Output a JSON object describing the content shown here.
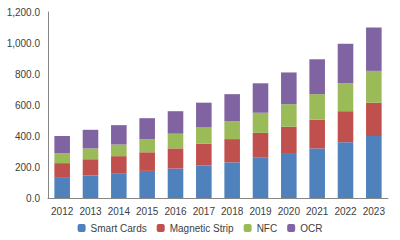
{
  "chart_data": {
    "type": "bar",
    "stacked": true,
    "grid": false,
    "legend": "bottom",
    "categories": [
      "2012",
      "2013",
      "2014",
      "2015",
      "2016",
      "2017",
      "2018",
      "2019",
      "2020",
      "2021",
      "2022",
      "2023"
    ],
    "series": [
      {
        "name": "Smart Cards",
        "color": "#4f81bd",
        "values": [
          130,
          145,
          160,
          175,
          190,
          210,
          230,
          260,
          290,
          320,
          360,
          400
        ]
      },
      {
        "name": "Magnetic Strip",
        "color": "#c0504d",
        "values": [
          95,
          105,
          110,
          120,
          130,
          140,
          150,
          160,
          170,
          185,
          200,
          215
        ]
      },
      {
        "name": "NFC",
        "color": "#9bbb59",
        "values": [
          65,
          70,
          75,
          85,
          95,
          105,
          115,
          130,
          145,
          165,
          180,
          205
        ]
      },
      {
        "name": "OCR",
        "color": "#8064a2",
        "values": [
          110,
          120,
          125,
          135,
          145,
          160,
          175,
          190,
          205,
          225,
          255,
          280
        ]
      }
    ],
    "ylim": [
      0,
      1200
    ],
    "yticks": [
      {
        "value": 0,
        "label": "0.0"
      },
      {
        "value": 200,
        "label": "200.0"
      },
      {
        "value": 400,
        "label": "400.0"
      },
      {
        "value": 600,
        "label": "600.0"
      },
      {
        "value": 800,
        "label": "800.0"
      },
      {
        "value": 1000,
        "label": "1,000.0"
      },
      {
        "value": 1200,
        "label": "1,200.0"
      }
    ]
  }
}
